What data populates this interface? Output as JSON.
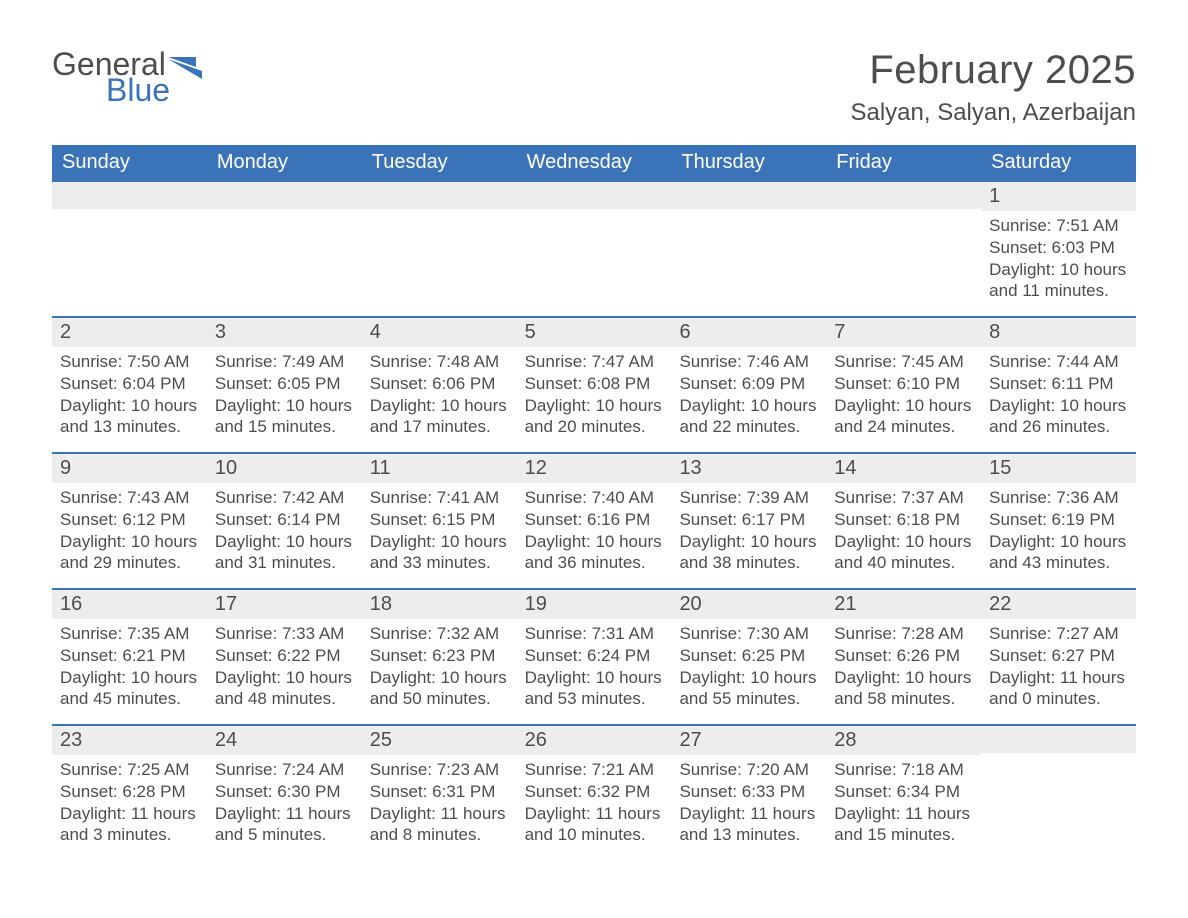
{
  "logo": {
    "word1": "General",
    "word2": "Blue"
  },
  "title": "February 2025",
  "location": "Salyan, Salyan, Azerbaijan",
  "colors": {
    "brand_blue": "#3b73b9",
    "header_text": "#ffffff",
    "body_text": "#4d4d4d",
    "day_header_bg": "#ededed",
    "background": "#ffffff",
    "week_divider": "#3b73b9"
  },
  "typography": {
    "title_fontsize": 40,
    "location_fontsize": 24,
    "weekday_fontsize": 20,
    "daynum_fontsize": 20,
    "body_fontsize": 17
  },
  "weekdays": [
    "Sunday",
    "Monday",
    "Tuesday",
    "Wednesday",
    "Thursday",
    "Friday",
    "Saturday"
  ],
  "weeks": [
    [
      {
        "day": "",
        "sunrise": "",
        "sunset": "",
        "daylight": ""
      },
      {
        "day": "",
        "sunrise": "",
        "sunset": "",
        "daylight": ""
      },
      {
        "day": "",
        "sunrise": "",
        "sunset": "",
        "daylight": ""
      },
      {
        "day": "",
        "sunrise": "",
        "sunset": "",
        "daylight": ""
      },
      {
        "day": "",
        "sunrise": "",
        "sunset": "",
        "daylight": ""
      },
      {
        "day": "",
        "sunrise": "",
        "sunset": "",
        "daylight": ""
      },
      {
        "day": "1",
        "sunrise": "Sunrise: 7:51 AM",
        "sunset": "Sunset: 6:03 PM",
        "daylight": "Daylight: 10 hours and 11 minutes."
      }
    ],
    [
      {
        "day": "2",
        "sunrise": "Sunrise: 7:50 AM",
        "sunset": "Sunset: 6:04 PM",
        "daylight": "Daylight: 10 hours and 13 minutes."
      },
      {
        "day": "3",
        "sunrise": "Sunrise: 7:49 AM",
        "sunset": "Sunset: 6:05 PM",
        "daylight": "Daylight: 10 hours and 15 minutes."
      },
      {
        "day": "4",
        "sunrise": "Sunrise: 7:48 AM",
        "sunset": "Sunset: 6:06 PM",
        "daylight": "Daylight: 10 hours and 17 minutes."
      },
      {
        "day": "5",
        "sunrise": "Sunrise: 7:47 AM",
        "sunset": "Sunset: 6:08 PM",
        "daylight": "Daylight: 10 hours and 20 minutes."
      },
      {
        "day": "6",
        "sunrise": "Sunrise: 7:46 AM",
        "sunset": "Sunset: 6:09 PM",
        "daylight": "Daylight: 10 hours and 22 minutes."
      },
      {
        "day": "7",
        "sunrise": "Sunrise: 7:45 AM",
        "sunset": "Sunset: 6:10 PM",
        "daylight": "Daylight: 10 hours and 24 minutes."
      },
      {
        "day": "8",
        "sunrise": "Sunrise: 7:44 AM",
        "sunset": "Sunset: 6:11 PM",
        "daylight": "Daylight: 10 hours and 26 minutes."
      }
    ],
    [
      {
        "day": "9",
        "sunrise": "Sunrise: 7:43 AM",
        "sunset": "Sunset: 6:12 PM",
        "daylight": "Daylight: 10 hours and 29 minutes."
      },
      {
        "day": "10",
        "sunrise": "Sunrise: 7:42 AM",
        "sunset": "Sunset: 6:14 PM",
        "daylight": "Daylight: 10 hours and 31 minutes."
      },
      {
        "day": "11",
        "sunrise": "Sunrise: 7:41 AM",
        "sunset": "Sunset: 6:15 PM",
        "daylight": "Daylight: 10 hours and 33 minutes."
      },
      {
        "day": "12",
        "sunrise": "Sunrise: 7:40 AM",
        "sunset": "Sunset: 6:16 PM",
        "daylight": "Daylight: 10 hours and 36 minutes."
      },
      {
        "day": "13",
        "sunrise": "Sunrise: 7:39 AM",
        "sunset": "Sunset: 6:17 PM",
        "daylight": "Daylight: 10 hours and 38 minutes."
      },
      {
        "day": "14",
        "sunrise": "Sunrise: 7:37 AM",
        "sunset": "Sunset: 6:18 PM",
        "daylight": "Daylight: 10 hours and 40 minutes."
      },
      {
        "day": "15",
        "sunrise": "Sunrise: 7:36 AM",
        "sunset": "Sunset: 6:19 PM",
        "daylight": "Daylight: 10 hours and 43 minutes."
      }
    ],
    [
      {
        "day": "16",
        "sunrise": "Sunrise: 7:35 AM",
        "sunset": "Sunset: 6:21 PM",
        "daylight": "Daylight: 10 hours and 45 minutes."
      },
      {
        "day": "17",
        "sunrise": "Sunrise: 7:33 AM",
        "sunset": "Sunset: 6:22 PM",
        "daylight": "Daylight: 10 hours and 48 minutes."
      },
      {
        "day": "18",
        "sunrise": "Sunrise: 7:32 AM",
        "sunset": "Sunset: 6:23 PM",
        "daylight": "Daylight: 10 hours and 50 minutes."
      },
      {
        "day": "19",
        "sunrise": "Sunrise: 7:31 AM",
        "sunset": "Sunset: 6:24 PM",
        "daylight": "Daylight: 10 hours and 53 minutes."
      },
      {
        "day": "20",
        "sunrise": "Sunrise: 7:30 AM",
        "sunset": "Sunset: 6:25 PM",
        "daylight": "Daylight: 10 hours and 55 minutes."
      },
      {
        "day": "21",
        "sunrise": "Sunrise: 7:28 AM",
        "sunset": "Sunset: 6:26 PM",
        "daylight": "Daylight: 10 hours and 58 minutes."
      },
      {
        "day": "22",
        "sunrise": "Sunrise: 7:27 AM",
        "sunset": "Sunset: 6:27 PM",
        "daylight": "Daylight: 11 hours and 0 minutes."
      }
    ],
    [
      {
        "day": "23",
        "sunrise": "Sunrise: 7:25 AM",
        "sunset": "Sunset: 6:28 PM",
        "daylight": "Daylight: 11 hours and 3 minutes."
      },
      {
        "day": "24",
        "sunrise": "Sunrise: 7:24 AM",
        "sunset": "Sunset: 6:30 PM",
        "daylight": "Daylight: 11 hours and 5 minutes."
      },
      {
        "day": "25",
        "sunrise": "Sunrise: 7:23 AM",
        "sunset": "Sunset: 6:31 PM",
        "daylight": "Daylight: 11 hours and 8 minutes."
      },
      {
        "day": "26",
        "sunrise": "Sunrise: 7:21 AM",
        "sunset": "Sunset: 6:32 PM",
        "daylight": "Daylight: 11 hours and 10 minutes."
      },
      {
        "day": "27",
        "sunrise": "Sunrise: 7:20 AM",
        "sunset": "Sunset: 6:33 PM",
        "daylight": "Daylight: 11 hours and 13 minutes."
      },
      {
        "day": "28",
        "sunrise": "Sunrise: 7:18 AM",
        "sunset": "Sunset: 6:34 PM",
        "daylight": "Daylight: 11 hours and 15 minutes."
      },
      {
        "day": "",
        "sunrise": "",
        "sunset": "",
        "daylight": ""
      }
    ]
  ]
}
